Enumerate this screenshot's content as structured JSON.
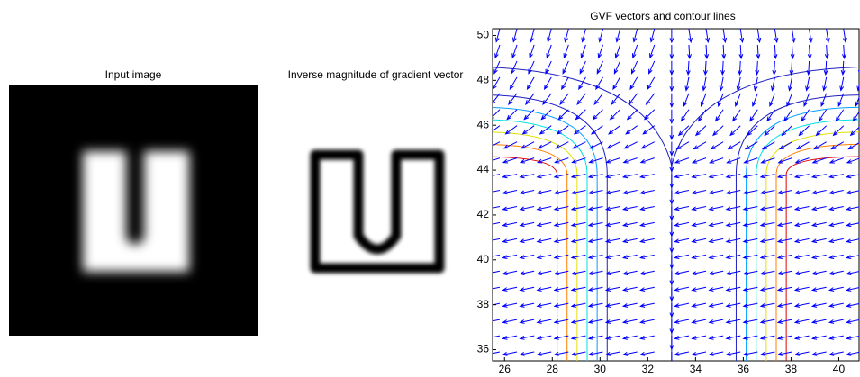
{
  "chart_data": [
    {
      "type": "image",
      "title": "Input image"
    },
    {
      "type": "image",
      "title": "Inverse magnitude of gradient vector"
    },
    {
      "type": "quiver",
      "title": "GVF vectors and contour lines",
      "xlim": [
        25.5,
        40.85
      ],
      "xticks": [
        26,
        28,
        30,
        32,
        34,
        36,
        38,
        40
      ],
      "ylim": [
        35.5,
        50.3
      ],
      "yticks": [
        36,
        38,
        40,
        42,
        44,
        46,
        48,
        50
      ],
      "color": "#0000ff"
    }
  ]
}
